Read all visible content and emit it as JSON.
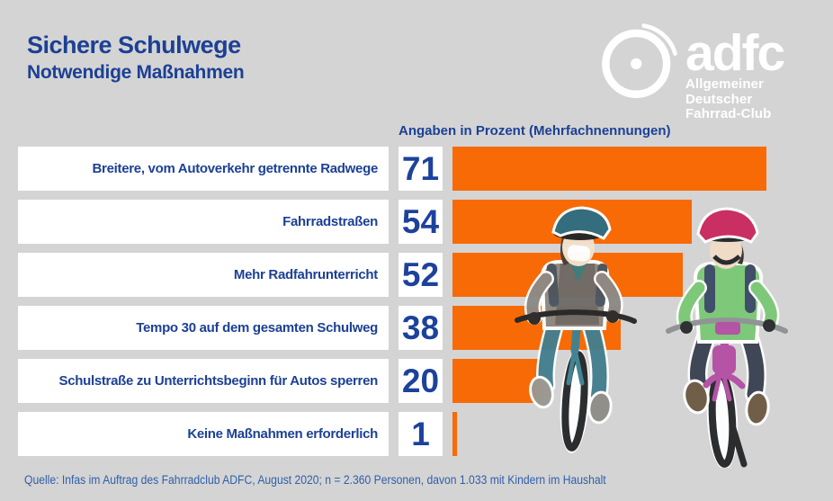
{
  "header": {
    "title": "Sichere Schulwege",
    "subtitle": "Notwendige Maßnahmen"
  },
  "logo": {
    "brand": "adfc",
    "subline1": "Allgemeiner Deutscher",
    "subline2": "Fahrrad-Club",
    "wheel_icon": "bicycle-wheel"
  },
  "chart_data": {
    "type": "bar",
    "orientation": "horizontal",
    "title": "Sichere Schulwege",
    "subtitle": "Notwendige Maßnahmen",
    "axis_note": "Angaben in Prozent (Mehrfachnennungen)",
    "unit": "percent",
    "xlim": [
      0,
      100
    ],
    "grid": false,
    "legend": false,
    "bar_color": "#f76a06",
    "categories": [
      "Breitere, vom Autoverkehr getrennte Radwege",
      "Fahrradstraßen",
      "Mehr Radfahrunterricht",
      "Tempo 30 auf dem gesamten Schulweg",
      "Schulstraße zu Unterrichtsbeginn für Autos sperren",
      "Keine Maßnahmen erforderlich"
    ],
    "values": [
      71,
      54,
      52,
      38,
      20,
      1
    ]
  },
  "footer": {
    "source": "Quelle: Infas im Auftrag des Fahrradclub ADFC, August 2020; n = 2.360 Personen, davon 1.033 mit Kindern im Haushalt"
  },
  "colors": {
    "background": "#d4d4d4",
    "bar_orange": "#f76a06",
    "text_blue": "#1c4094",
    "box_white": "#ffffff"
  },
  "illustration": {
    "name": "children-on-bikes"
  }
}
